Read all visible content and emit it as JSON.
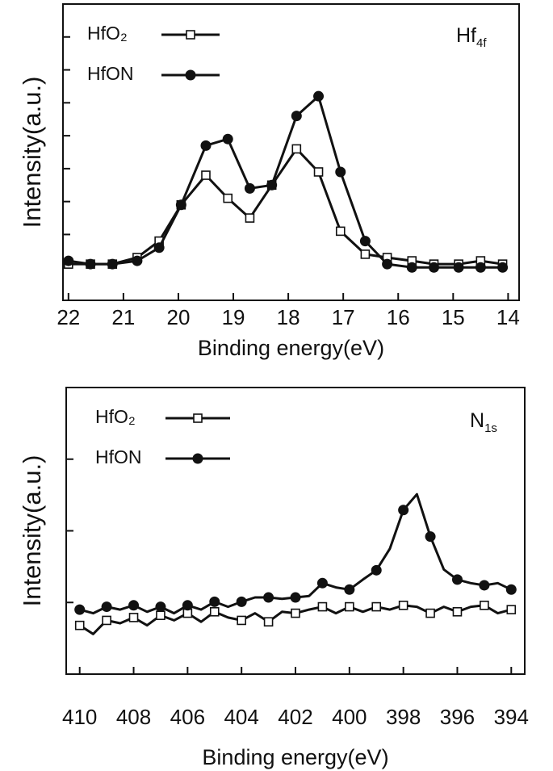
{
  "chart_data": [
    {
      "type": "line",
      "x_label": "Binding energy(eV)",
      "y_label": "Intensity(a.u.)",
      "annotation": {
        "main": "Hf",
        "sub": "4f"
      },
      "legend": "upper left",
      "xlim": [
        22.1,
        13.8
      ],
      "xticks": [
        22,
        21,
        20,
        19,
        18,
        17,
        16,
        15,
        14
      ],
      "ylim": [
        0,
        90
      ],
      "yticks": [
        10,
        20,
        30,
        40,
        50,
        60,
        70,
        80
      ],
      "x": [
        22,
        21.6,
        21.2,
        20.75,
        20.35,
        19.95,
        19.5,
        19.1,
        18.7,
        18.3,
        17.85,
        17.45,
        17.05,
        16.6,
        16.2,
        15.75,
        15.35,
        14.9,
        14.5,
        14.1
      ],
      "series": [
        {
          "name": "HfO₂",
          "color": "#111111",
          "marker": "square",
          "values": [
            11,
            11,
            11,
            13,
            18,
            29,
            38,
            31,
            25,
            35,
            46,
            39,
            21,
            14,
            13,
            12,
            11,
            11,
            12,
            11
          ]
        },
        {
          "name": "HfON",
          "color": "#111111",
          "marker": "circle",
          "values": [
            12,
            11,
            11,
            12,
            16,
            29,
            47,
            49,
            34,
            35,
            56,
            62,
            39,
            18,
            11,
            10,
            10,
            10,
            10,
            10
          ]
        }
      ]
    },
    {
      "type": "line",
      "x_label": "Binding energy(eV)",
      "y_label": "Intensity(a.u.)",
      "annotation": {
        "main": "N",
        "sub": "1s"
      },
      "legend": "upper left",
      "xlim": [
        410.5,
        393.5
      ],
      "xticks": [
        410,
        408,
        406,
        404,
        402,
        400,
        398,
        396,
        394
      ],
      "ylim": [
        0,
        4
      ],
      "yticks": [
        1,
        2,
        3
      ],
      "x": [
        410,
        409.5,
        409,
        408.5,
        408,
        407.5,
        407,
        406.5,
        406,
        405.5,
        405,
        404.5,
        404,
        403.5,
        403,
        402.5,
        402,
        401.5,
        401,
        400.5,
        400,
        399.5,
        399,
        398.5,
        398,
        397.5,
        397,
        396.5,
        396,
        395.5,
        395,
        394.5,
        394
      ],
      "series": [
        {
          "name": "HfO₂",
          "color": "#111111",
          "marker": "square",
          "values": [
            0.68,
            0.56,
            0.75,
            0.71,
            0.79,
            0.68,
            0.82,
            0.75,
            0.85,
            0.73,
            0.87,
            0.79,
            0.75,
            0.85,
            0.73,
            0.87,
            0.85,
            0.9,
            0.94,
            0.85,
            0.94,
            0.87,
            0.94,
            0.9,
            0.96,
            0.94,
            0.85,
            0.94,
            0.87,
            0.94,
            0.96,
            0.85,
            0.9
          ]
        },
        {
          "name": "HfON",
          "color": "#111111",
          "marker": "circle",
          "values": [
            0.9,
            0.85,
            0.94,
            0.9,
            0.96,
            0.87,
            0.94,
            0.85,
            0.96,
            0.9,
            1.01,
            0.94,
            1.01,
            1.07,
            1.07,
            1.05,
            1.07,
            1.09,
            1.27,
            1.21,
            1.18,
            1.32,
            1.45,
            1.75,
            2.29,
            2.51,
            1.92,
            1.46,
            1.32,
            1.27,
            1.24,
            1.27,
            1.18
          ]
        }
      ]
    }
  ]
}
